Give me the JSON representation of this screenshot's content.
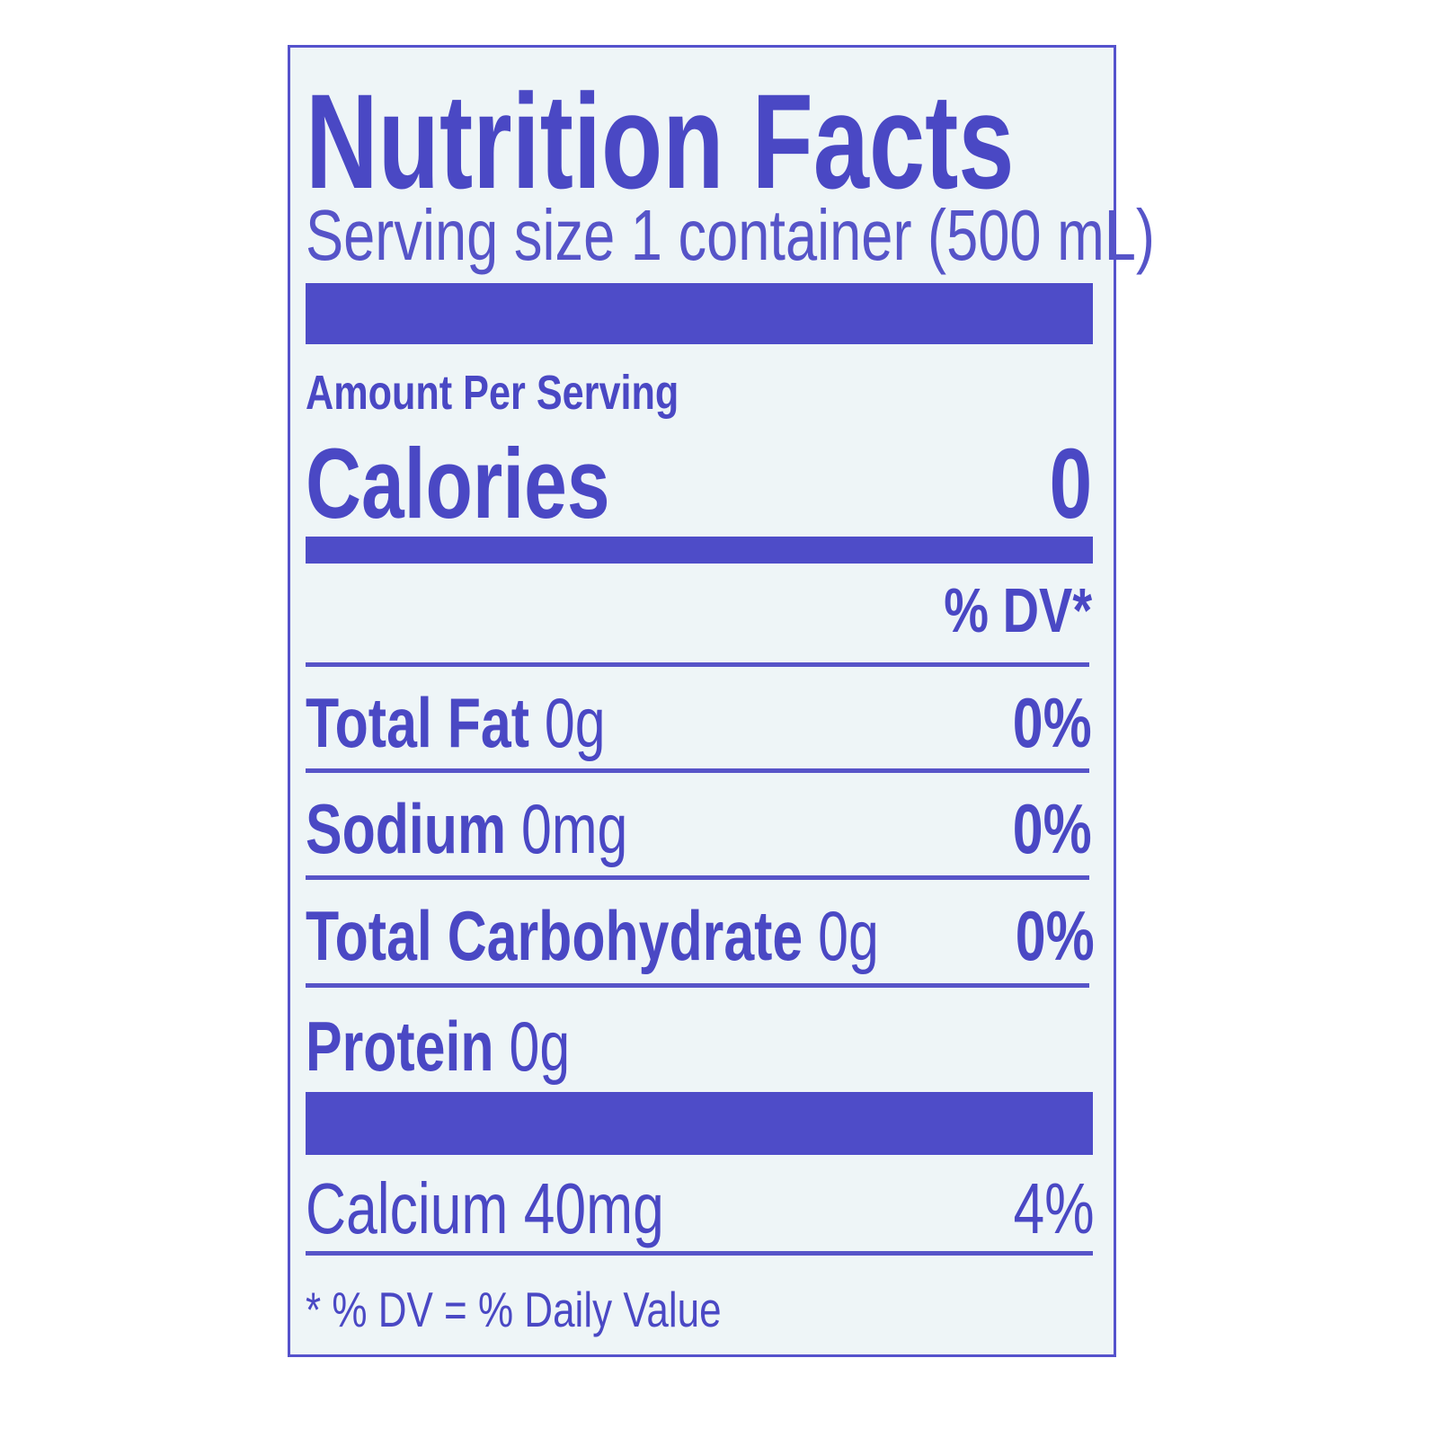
{
  "title": "Nutrition Facts",
  "serving_size": "Serving size 1 container (500 mL)",
  "amount_per_serving": "Amount Per Serving",
  "calories": {
    "label": "Calories",
    "value": "0"
  },
  "dv_header": "% DV*",
  "nutrients": [
    {
      "name": "Total Fat",
      "amount": "0g",
      "dv": "0%"
    },
    {
      "name": "Sodium",
      "amount": "0mg",
      "dv": "0%"
    },
    {
      "name": "Total Carbohydrate",
      "amount": "0g",
      "dv": "0%"
    },
    {
      "name": "Protein",
      "amount": "0g",
      "dv": ""
    }
  ],
  "vitamins": [
    {
      "name": "Calcium",
      "amount": "40mg",
      "dv": "4%"
    }
  ],
  "footnote": "* % DV = % Daily Value",
  "colors": {
    "ink": "#4a48c4",
    "background": "#eef5f7"
  }
}
